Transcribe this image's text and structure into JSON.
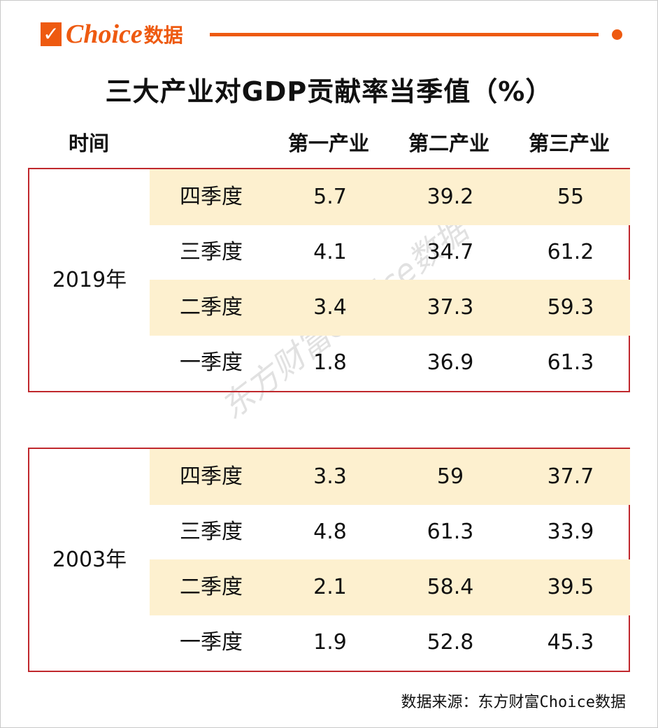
{
  "brand": {
    "logo_latin": "Choice",
    "logo_cn": "数据",
    "color": "#ee5a10"
  },
  "title": "三大产业对GDP贡献率当季值（%）",
  "headers": [
    "时间",
    "第一产业",
    "第二产业",
    "第三产业"
  ],
  "groups": [
    {
      "year": "2019年",
      "rows": [
        {
          "quarter": "四季度",
          "values": [
            "5.7",
            "39.2",
            "55"
          ]
        },
        {
          "quarter": "三季度",
          "values": [
            "4.1",
            "34.7",
            "61.2"
          ]
        },
        {
          "quarter": "二季度",
          "values": [
            "3.4",
            "37.3",
            "59.3"
          ]
        },
        {
          "quarter": "一季度",
          "values": [
            "1.8",
            "36.9",
            "61.3"
          ]
        }
      ]
    },
    {
      "year": "2003年",
      "rows": [
        {
          "quarter": "四季度",
          "values": [
            "3.3",
            "59",
            "37.7"
          ]
        },
        {
          "quarter": "三季度",
          "values": [
            "4.8",
            "61.3",
            "33.9"
          ]
        },
        {
          "quarter": "二季度",
          "values": [
            "2.1",
            "58.4",
            "39.5"
          ]
        },
        {
          "quarter": "一季度",
          "values": [
            "1.9",
            "52.8",
            "45.3"
          ]
        }
      ]
    }
  ],
  "watermark": "东方财富Choice数据",
  "source": "数据来源：东方财富Choice数据"
}
